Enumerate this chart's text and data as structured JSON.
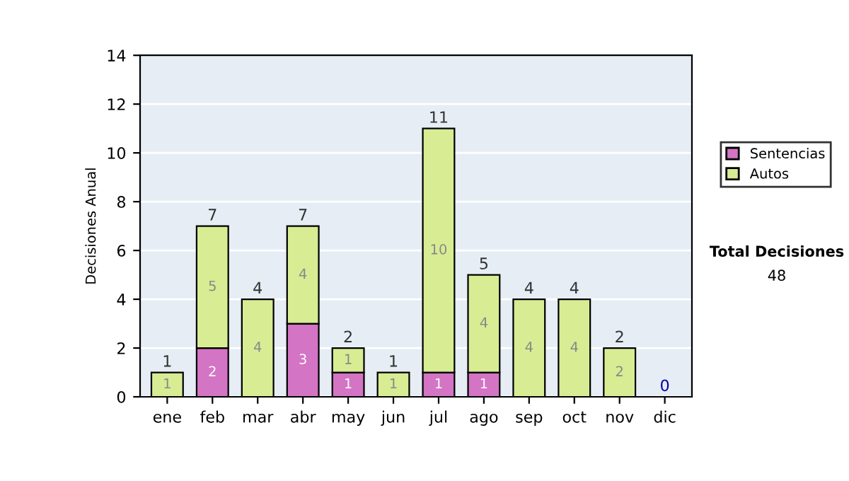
{
  "chart_data": {
    "type": "bar",
    "stacked": true,
    "ylabel": "Decisiones Anual",
    "categories": [
      "ene",
      "feb",
      "mar",
      "abr",
      "may",
      "jun",
      "jul",
      "ago",
      "sep",
      "oct",
      "nov",
      "dic"
    ],
    "series": [
      {
        "name": "Sentencias",
        "color": "#d474c4",
        "values": [
          0,
          2,
          0,
          3,
          1,
          0,
          1,
          1,
          0,
          0,
          0,
          0
        ],
        "value_labels": [
          null,
          "2",
          null,
          "3",
          "1",
          null,
          "1",
          "1",
          null,
          null,
          null,
          null
        ]
      },
      {
        "name": "Autos",
        "color": "#d8ec94",
        "values": [
          1,
          5,
          4,
          4,
          1,
          1,
          10,
          4,
          4,
          4,
          2,
          0
        ],
        "value_labels": [
          "1",
          "5",
          "4",
          "4",
          "1",
          "1",
          "10",
          "4",
          "4",
          "4",
          "2",
          null
        ]
      }
    ],
    "totals": [
      "1",
      "7",
      "4",
      "7",
      "2",
      "1",
      "11",
      "5",
      "4",
      "4",
      "2",
      "0"
    ],
    "ylim": [
      0,
      14
    ],
    "yticks": [
      0,
      2,
      4,
      6,
      8,
      10,
      12,
      14
    ],
    "grid": "y",
    "legend": "right",
    "annotations": [
      "Total Decisiones",
      "48"
    ]
  }
}
